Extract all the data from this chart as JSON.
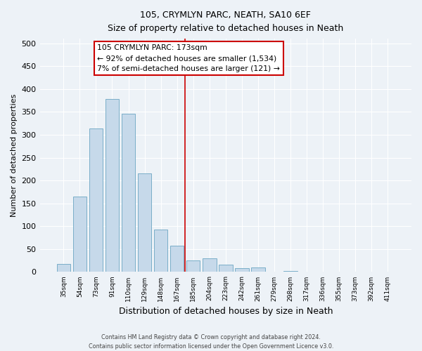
{
  "title": "105, CRYMLYN PARC, NEATH, SA10 6EF",
  "subtitle": "Size of property relative to detached houses in Neath",
  "xlabel": "Distribution of detached houses by size in Neath",
  "ylabel": "Number of detached properties",
  "bar_labels": [
    "35sqm",
    "54sqm",
    "73sqm",
    "91sqm",
    "110sqm",
    "129sqm",
    "148sqm",
    "167sqm",
    "185sqm",
    "204sqm",
    "223sqm",
    "242sqm",
    "261sqm",
    "279sqm",
    "298sqm",
    "317sqm",
    "336sqm",
    "355sqm",
    "373sqm",
    "392sqm",
    "411sqm"
  ],
  "bar_values": [
    17,
    165,
    314,
    378,
    346,
    216,
    93,
    57,
    25,
    30,
    16,
    8,
    10,
    0,
    2,
    0,
    0,
    1,
    0,
    0,
    0
  ],
  "bar_color": "#c6d9ea",
  "bar_edge_color": "#7aaec8",
  "vline_x": 7.5,
  "vline_color": "#cc0000",
  "annotation_title": "105 CRYMLYN PARC: 173sqm",
  "annotation_line1": "← 92% of detached houses are smaller (1,534)",
  "annotation_line2": "7% of semi-detached houses are larger (121) →",
  "annotation_box_edge": "#cc0000",
  "ylim": [
    0,
    510
  ],
  "yticks": [
    0,
    50,
    100,
    150,
    200,
    250,
    300,
    350,
    400,
    450,
    500
  ],
  "footer_line1": "Contains HM Land Registry data © Crown copyright and database right 2024.",
  "footer_line2": "Contains public sector information licensed under the Open Government Licence v3.0.",
  "background_color": "#edf2f7"
}
